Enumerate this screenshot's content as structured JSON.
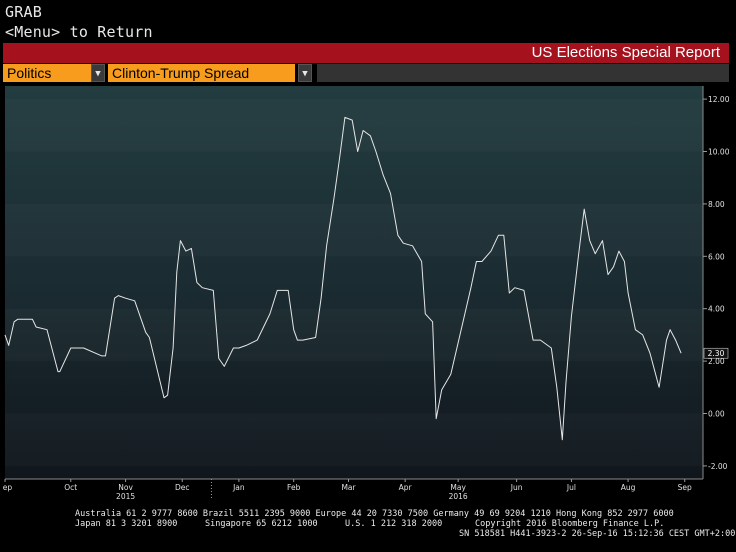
{
  "header": {
    "line1": "GRAB",
    "line2": "<Menu> to Return"
  },
  "report_bar": {
    "title": "US Elections Special Report",
    "color": "#a5121e"
  },
  "selectors": {
    "category": "Politics",
    "series": "Clinton-Trump Spread",
    "accent": "#f79c1c"
  },
  "footer": {
    "line1": "Australia 61 2 9777 8600 Brazil 5511 2395 9000 Europe 44 20 7330 7500 Germany 49 69 9204 1210 Hong Kong 852 2977 6000",
    "line2a": "Japan 81 3 3201 8900",
    "line2b": "Singapore 65 6212 1000",
    "line2c": "U.S. 1 212 318 2000",
    "line2d": "Copyright 2016 Bloomberg Finance L.P.",
    "line3": "SN 518581 H441-3923-2 26-Sep-16 15:12:36 CEST GMT+2:00"
  },
  "chart_data": {
    "type": "line",
    "title": "",
    "xlabel": "",
    "ylabel": "",
    "ylim": [
      -2.5,
      12.5
    ],
    "y_ticks": [
      12,
      10,
      8,
      6,
      4,
      2,
      0,
      -2
    ],
    "y_tick_labels": [
      "12.00",
      "10.00",
      "8.00",
      "6.00",
      "4.00",
      "2.00",
      "0.00",
      "-2.00"
    ],
    "x_start": "2015-09-10",
    "x_end": "2016-09-26",
    "month_labels": [
      {
        "label": "Sep",
        "date": "2015-09-10"
      },
      {
        "label": "Oct",
        "date": "2015-10-16"
      },
      {
        "label": "Nov",
        "date": "2015-11-15"
      },
      {
        "label": "Dec",
        "date": "2015-12-16"
      },
      {
        "label": "Jan",
        "date": "2016-01-16"
      },
      {
        "label": "Feb",
        "date": "2016-02-15"
      },
      {
        "label": "Mar",
        "date": "2016-03-16"
      },
      {
        "label": "Apr",
        "date": "2016-04-16"
      },
      {
        "label": "May",
        "date": "2016-05-15"
      },
      {
        "label": "Jun",
        "date": "2016-06-16"
      },
      {
        "label": "Jul",
        "date": "2016-07-16"
      },
      {
        "label": "Aug",
        "date": "2016-08-16"
      },
      {
        "label": "Sep",
        "date": "2016-09-16"
      }
    ],
    "year_labels": [
      {
        "label": "2015",
        "date": "2015-11-15"
      },
      {
        "label": "2016",
        "date": "2016-05-15"
      }
    ],
    "last_value_label": "2.30",
    "series": [
      {
        "color": "#e6e6e6",
        "x": [
          "2015-09-10",
          "2015-09-12",
          "2015-09-15",
          "2015-09-17",
          "2015-09-25",
          "2015-09-27",
          "2015-10-03",
          "2015-10-09",
          "2015-10-10",
          "2015-10-16",
          "2015-10-17",
          "2015-10-20",
          "2015-10-23",
          "2015-11-02",
          "2015-11-04",
          "2015-11-09",
          "2015-11-11",
          "2015-11-15",
          "2015-11-20",
          "2015-11-26",
          "2015-11-28",
          "2015-12-06",
          "2015-12-08",
          "2015-12-11",
          "2015-12-13",
          "2015-12-15",
          "2015-12-18",
          "2015-12-21",
          "2015-12-24",
          "2015-12-27",
          "2016-01-02",
          "2016-01-05",
          "2016-01-08",
          "2016-01-13",
          "2016-01-16",
          "2016-01-20",
          "2016-01-26",
          "2016-02-02",
          "2016-02-06",
          "2016-02-12",
          "2016-02-15",
          "2016-02-17",
          "2016-02-20",
          "2016-02-27",
          "2016-03-01",
          "2016-03-04",
          "2016-03-08",
          "2016-03-11",
          "2016-03-14",
          "2016-03-18",
          "2016-03-21",
          "2016-03-24",
          "2016-03-28",
          "2016-03-31",
          "2016-04-04",
          "2016-04-08",
          "2016-04-12",
          "2016-04-15",
          "2016-04-20",
          "2016-04-25",
          "2016-04-27",
          "2016-05-01",
          "2016-05-03",
          "2016-05-06",
          "2016-05-11",
          "2016-05-14",
          "2016-05-18",
          "2016-05-22",
          "2016-05-25",
          "2016-05-28",
          "2016-06-02",
          "2016-06-06",
          "2016-06-09",
          "2016-06-12",
          "2016-06-15",
          "2016-06-20",
          "2016-06-25",
          "2016-06-29",
          "2016-07-05",
          "2016-07-08",
          "2016-07-11",
          "2016-07-13",
          "2016-07-16",
          "2016-07-20",
          "2016-07-23",
          "2016-07-26",
          "2016-07-29",
          "2016-08-02",
          "2016-08-05",
          "2016-08-08",
          "2016-08-11",
          "2016-08-14",
          "2016-08-16",
          "2016-08-20",
          "2016-08-24",
          "2016-08-28",
          "2016-09-02",
          "2016-09-06",
          "2016-09-08",
          "2016-09-11",
          "2016-09-14",
          "2016-09-17",
          "2016-09-21",
          "2016-09-23",
          "2016-09-26"
        ],
        "y": [
          3.0,
          2.6,
          3.5,
          3.6,
          3.6,
          3.3,
          3.2,
          1.6,
          1.6,
          2.5,
          2.5,
          2.5,
          2.5,
          2.2,
          2.2,
          4.4,
          4.5,
          4.4,
          4.3,
          3.1,
          2.9,
          0.6,
          0.7,
          2.5,
          5.4,
          6.6,
          6.2,
          6.3,
          5.0,
          4.8,
          4.7,
          2.1,
          1.8,
          2.5,
          2.5,
          2.6,
          2.8,
          3.8,
          4.7,
          4.7,
          3.2,
          2.8,
          2.8,
          2.9,
          4.4,
          6.4,
          8.2,
          9.7,
          11.3,
          11.2,
          10.0,
          10.8,
          10.6,
          10.0,
          9.1,
          8.4,
          6.8,
          6.5,
          6.4,
          5.8,
          3.8,
          3.5,
          -0.2,
          0.9,
          1.5,
          2.4,
          3.6,
          4.8,
          5.8,
          5.8,
          6.2,
          6.8,
          6.8,
          4.6,
          4.8,
          4.7,
          2.8,
          2.8,
          2.5,
          1.0,
          -1.0,
          1.2,
          3.7,
          6.1,
          7.8,
          6.6,
          6.1,
          6.6,
          5.3,
          5.6,
          6.2,
          5.8,
          4.6,
          3.2,
          3.0,
          2.3,
          1.0,
          2.8,
          3.2,
          2.8,
          2.3,
          null,
          null,
          null,
          null
        ]
      }
    ]
  }
}
